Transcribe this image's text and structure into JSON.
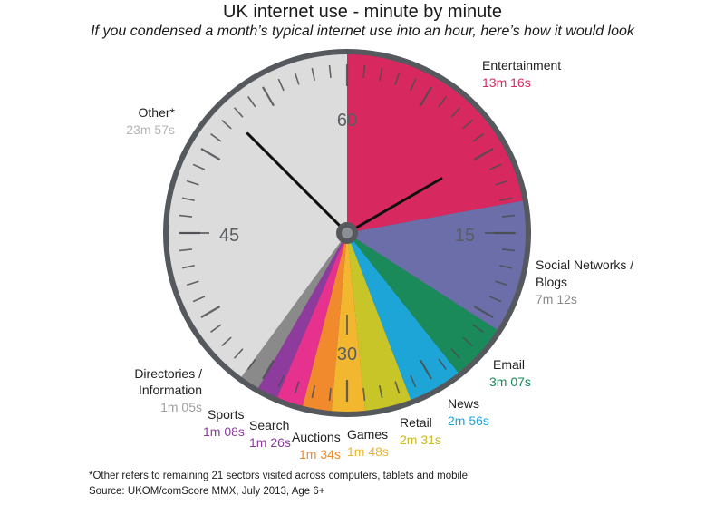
{
  "header": {
    "title": "UK internet use - minute by minute",
    "subtitle": "If you condensed a month’s typical internet use into an hour, here’s how it would look"
  },
  "chart_data": {
    "type": "pie",
    "title": "UK internet use - minute by minute",
    "subtitle": "If you condensed a month’s typical internet use into an hour, here’s how it would look",
    "unit": "minutes of 60",
    "dial_labels": [
      "60",
      "15",
      "30",
      "45"
    ],
    "slices": [
      {
        "label": "Entertainment",
        "value_text": "13m 16s",
        "minutes": 13.267,
        "color": "#d7295f"
      },
      {
        "label": "Social Networks / Blogs",
        "value_text": "7m 12s",
        "minutes": 7.2,
        "color": "#6c6ea9"
      },
      {
        "label": "Email",
        "value_text": "3m 07s",
        "minutes": 3.117,
        "color": "#1b8a5a"
      },
      {
        "label": "News",
        "value_text": "2m 56s",
        "minutes": 2.933,
        "color": "#1ea5d8"
      },
      {
        "label": "Retail",
        "value_text": "2m 31s",
        "minutes": 2.517,
        "color": "#c8c528"
      },
      {
        "label": "Games",
        "value_text": "1m 48s",
        "minutes": 1.8,
        "color": "#f2b62f"
      },
      {
        "label": "Auctions",
        "value_text": "1m 34s",
        "minutes": 1.567,
        "color": "#f08a2c"
      },
      {
        "label": "Search",
        "value_text": "1m 26s",
        "minutes": 1.433,
        "color": "#e6318e"
      },
      {
        "label": "Sports",
        "value_text": "1m 08s",
        "minutes": 1.133,
        "color": "#8d3b9c"
      },
      {
        "label": "Directories / Information",
        "value_text": "1m 05s",
        "minutes": 1.083,
        "color": "#8a8a8a"
      },
      {
        "label": "Other*",
        "value_text": "23m 57s",
        "minutes": 23.95,
        "color": "#dcdcdc"
      }
    ],
    "hands": {
      "hour_minutes": 10,
      "minute_minutes": 52.5
    }
  },
  "labels": {
    "entertainment": {
      "name": "Entertainment",
      "value": "13m 16s",
      "color": "#d7295f"
    },
    "social": {
      "name_line1": "Social Networks /",
      "name_line2": "Blogs",
      "value": "7m 12s",
      "color": "#8a8a8a"
    },
    "email": {
      "name": "Email",
      "value": "3m 07s",
      "color": "#1b8a5a"
    },
    "news": {
      "name": "News",
      "value": "2m 56s",
      "color": "#1ea5d8"
    },
    "retail": {
      "name": "Retail",
      "value": "2m 31s",
      "color": "#c8b820"
    },
    "games": {
      "name": "Games",
      "value": "1m 48s",
      "color": "#e9b72a"
    },
    "auctions": {
      "name": "Auctions",
      "value": "1m 34s",
      "color": "#f08a2c"
    },
    "search": {
      "name": "Search",
      "value": "1m 26s",
      "color": "#8d3b9c"
    },
    "sports": {
      "name": "Sports",
      "value": "1m 08s",
      "color": "#8d3b9c"
    },
    "directories": {
      "name_line1": "Directories /",
      "name_line2": "Information",
      "value": "1m 05s",
      "color": "#a0a0a0"
    },
    "other": {
      "name": "Other*",
      "value": "23m 57s",
      "color": "#b5b5b5"
    }
  },
  "footer": {
    "footnote": "*Other refers to remaining 21 sectors visited across computers, tablets and mobile",
    "source": "Source: UKOM/comScore MMX, July 2013, Age 6+"
  }
}
